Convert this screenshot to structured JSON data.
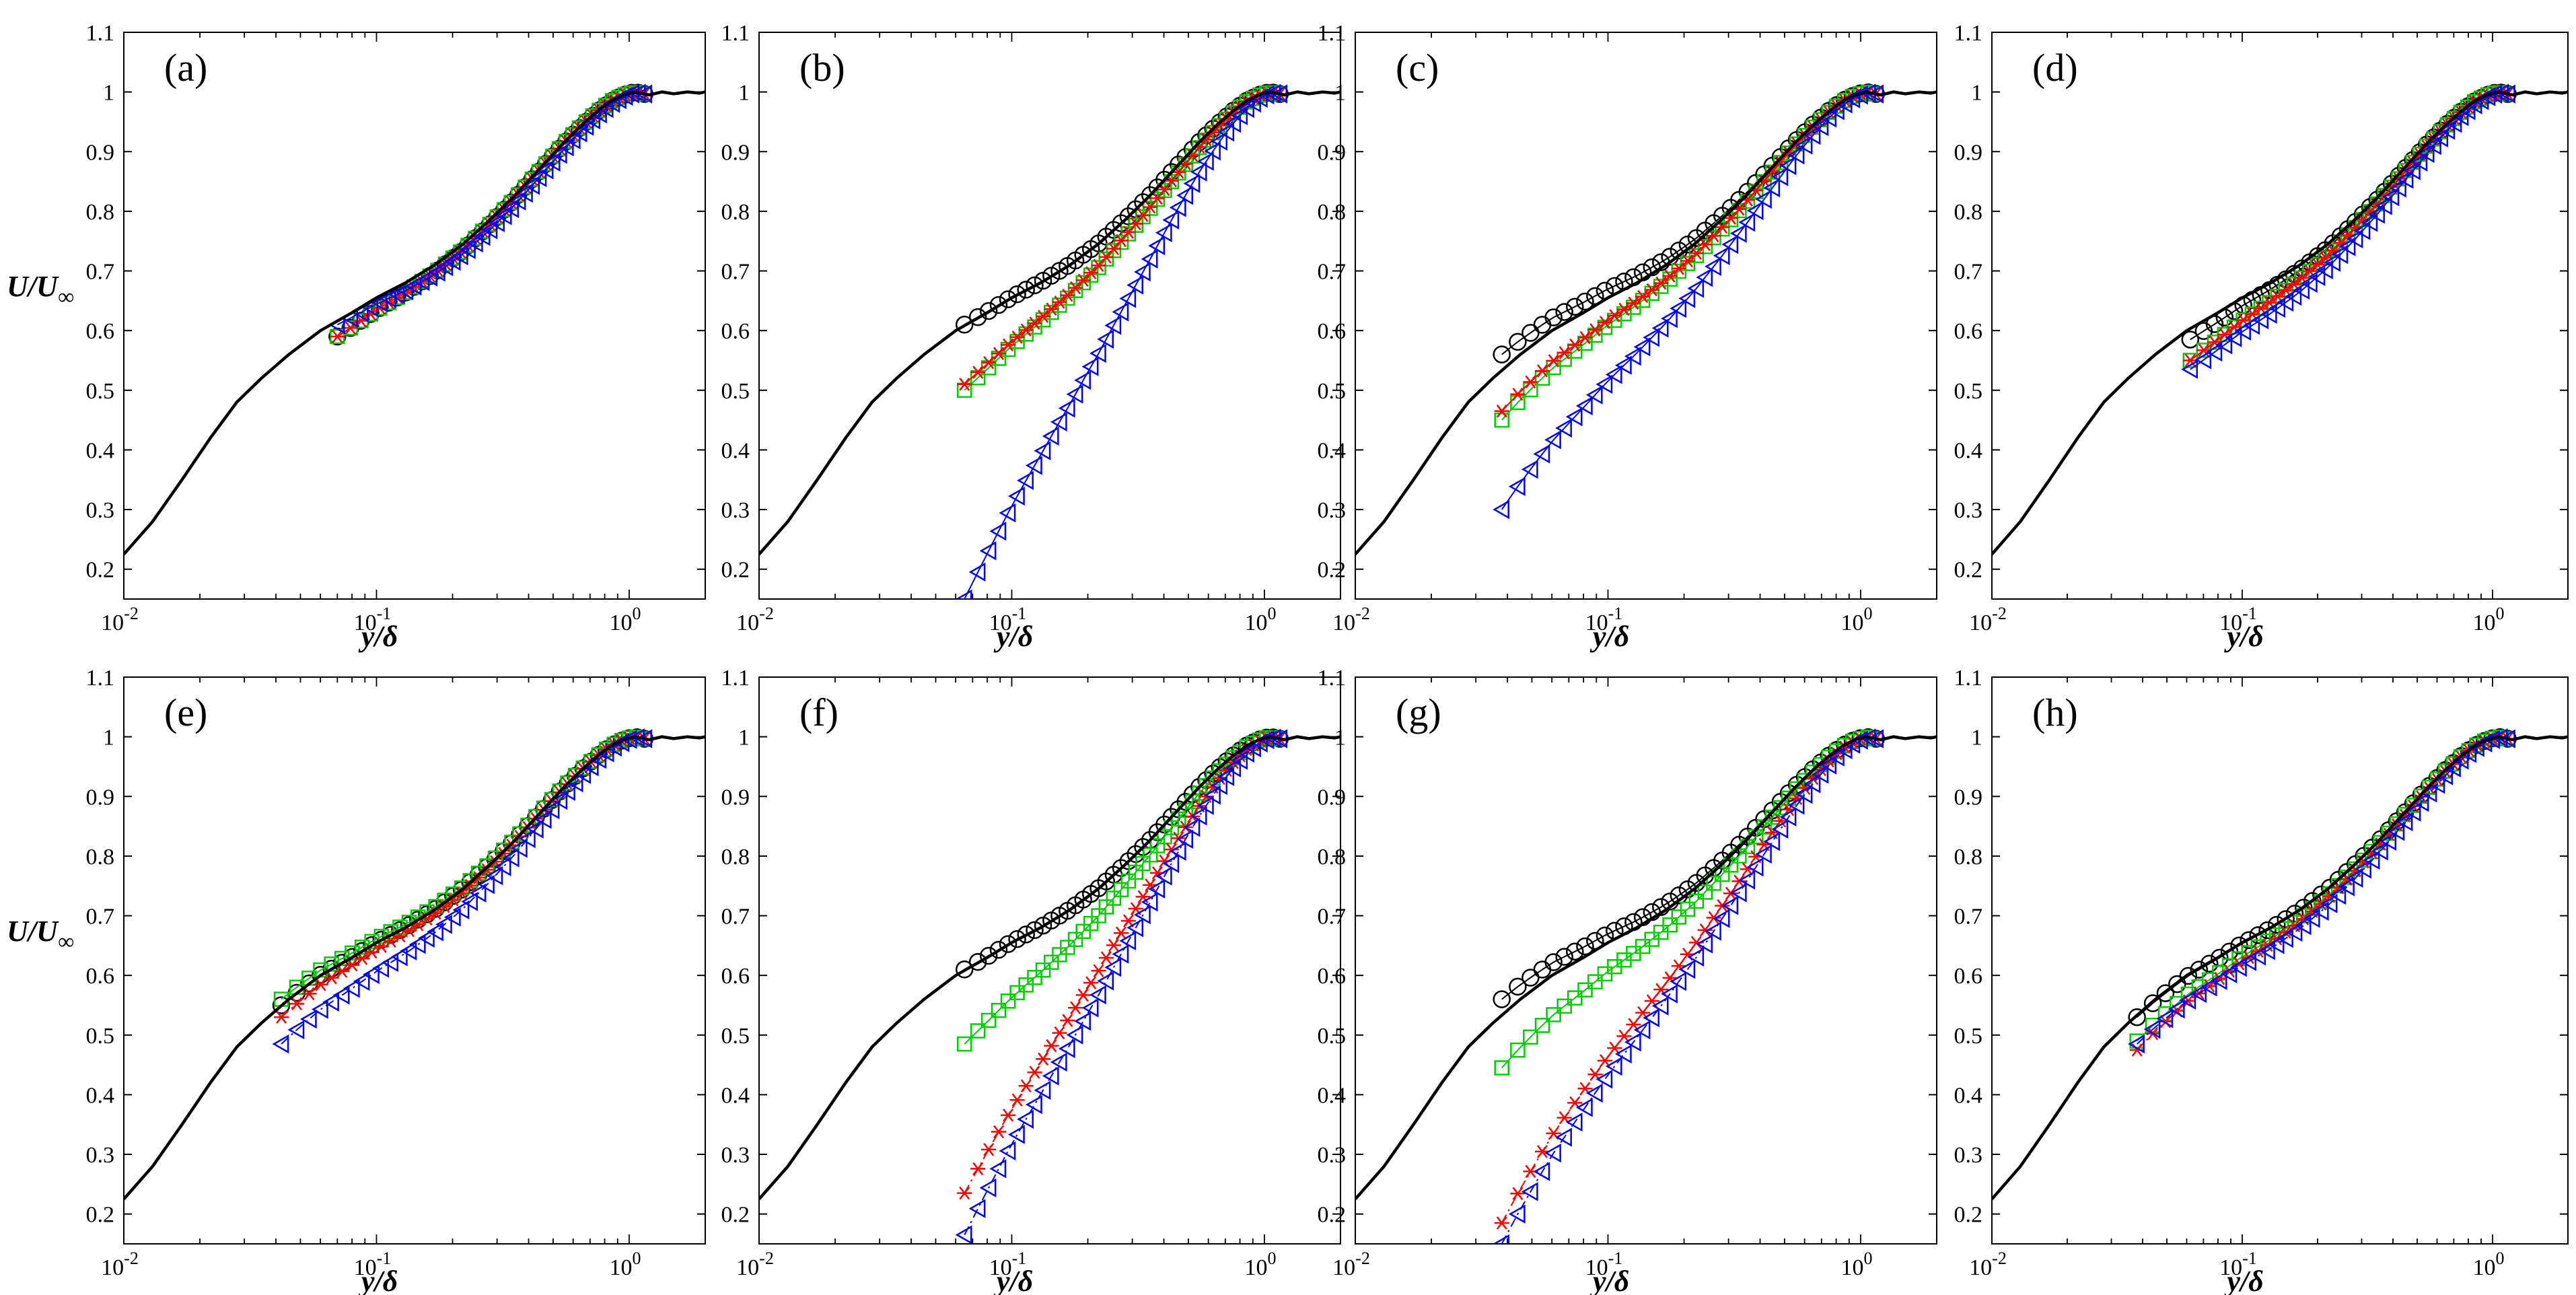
{
  "figure": {
    "x_label": "y/δ",
    "y_label_main": "U/U",
    "y_label_sub": "∞",
    "x_ticks": [
      {
        "base": "10",
        "exp": "-2",
        "value": 0.01
      },
      {
        "base": "10",
        "exp": "-1",
        "value": 0.1
      },
      {
        "base": "10",
        "exp": "0",
        "value": 1
      }
    ],
    "y_ticks": [
      "0.2",
      "0.3",
      "0.4",
      "0.5",
      "0.6",
      "0.7",
      "0.8",
      "0.9",
      "1",
      "1.1"
    ]
  },
  "colors": {
    "black": "#000000",
    "red": "#ff0000",
    "green": "#00cc00",
    "blue": "#0000ff"
  },
  "chart_data": [
    {
      "label": "(a)",
      "type": "line",
      "xscale": "log",
      "xlim": [
        0.01,
        2
      ],
      "ylim": [
        0.15,
        1.1
      ],
      "markers": [
        {
          "name": "circle",
          "color": "black",
          "style": "solid",
          "x0": 0.07,
          "y0": 0.59
        },
        {
          "name": "square",
          "color": "green",
          "style": "solid",
          "x0": 0.07,
          "y0": 0.59
        },
        {
          "name": "star",
          "color": "red",
          "style": "solid",
          "x0": 0.07,
          "y0": 0.59
        },
        {
          "name": "triangle",
          "color": "blue",
          "style": "solid",
          "x0": 0.07,
          "y0": 0.61
        }
      ]
    },
    {
      "label": "(b)",
      "type": "line",
      "xscale": "log",
      "xlim": [
        0.01,
        2
      ],
      "ylim": [
        0.15,
        1.1
      ],
      "markers": [
        {
          "name": "circle",
          "color": "black",
          "style": "solid",
          "x0": 0.065,
          "y0": 0.61
        },
        {
          "name": "square",
          "color": "green",
          "style": "solid",
          "x0": 0.065,
          "y0": 0.5
        },
        {
          "name": "star",
          "color": "red",
          "style": "solid",
          "x0": 0.065,
          "y0": 0.51
        },
        {
          "name": "triangle",
          "color": "blue",
          "style": "solid",
          "x0": 0.065,
          "y0": 0.15
        }
      ]
    },
    {
      "label": "(c)",
      "type": "line",
      "xscale": "log",
      "xlim": [
        0.01,
        2
      ],
      "ylim": [
        0.15,
        1.1
      ],
      "markers": [
        {
          "name": "circle",
          "color": "black",
          "style": "solid",
          "x0": 0.038,
          "y0": 0.56
        },
        {
          "name": "square",
          "color": "green",
          "style": "solid",
          "x0": 0.038,
          "y0": 0.45
        },
        {
          "name": "star",
          "color": "red",
          "style": "solid",
          "x0": 0.038,
          "y0": 0.465
        },
        {
          "name": "triangle",
          "color": "blue",
          "style": "solid",
          "x0": 0.038,
          "y0": 0.3
        }
      ]
    },
    {
      "label": "(d)",
      "type": "line",
      "xscale": "log",
      "xlim": [
        0.01,
        2
      ],
      "ylim": [
        0.15,
        1.1
      ],
      "markers": [
        {
          "name": "circle",
          "color": "black",
          "style": "solid",
          "x0": 0.062,
          "y0": 0.585
        },
        {
          "name": "square",
          "color": "green",
          "style": "solid",
          "x0": 0.062,
          "y0": 0.55
        },
        {
          "name": "star",
          "color": "red",
          "style": "solid",
          "x0": 0.062,
          "y0": 0.55
        },
        {
          "name": "triangle",
          "color": "blue",
          "style": "solid",
          "x0": 0.062,
          "y0": 0.535
        }
      ]
    },
    {
      "label": "(e)",
      "type": "line",
      "xscale": "log",
      "xlim": [
        0.01,
        2
      ],
      "ylim": [
        0.15,
        1.1
      ],
      "markers": [
        {
          "name": "circle",
          "color": "black",
          "style": "solid",
          "x0": 0.042,
          "y0": 0.55
        },
        {
          "name": "square",
          "color": "green",
          "style": "solid",
          "x0": 0.042,
          "y0": 0.56
        },
        {
          "name": "star",
          "color": "red",
          "style": "dashdot",
          "x0": 0.042,
          "y0": 0.53
        },
        {
          "name": "triangle",
          "color": "blue",
          "style": "dashdot",
          "x0": 0.042,
          "y0": 0.485
        }
      ]
    },
    {
      "label": "(f)",
      "type": "line",
      "xscale": "log",
      "xlim": [
        0.01,
        2
      ],
      "ylim": [
        0.15,
        1.1
      ],
      "markers": [
        {
          "name": "circle",
          "color": "black",
          "style": "solid",
          "x0": 0.065,
          "y0": 0.61
        },
        {
          "name": "square",
          "color": "green",
          "style": "solid",
          "x0": 0.065,
          "y0": 0.485
        },
        {
          "name": "star",
          "color": "red",
          "style": "dashdot",
          "x0": 0.065,
          "y0": 0.235
        },
        {
          "name": "triangle",
          "color": "blue",
          "style": "dashdot",
          "x0": 0.065,
          "y0": 0.165
        }
      ]
    },
    {
      "label": "(g)",
      "type": "line",
      "xscale": "log",
      "xlim": [
        0.01,
        2
      ],
      "ylim": [
        0.15,
        1.1
      ],
      "markers": [
        {
          "name": "circle",
          "color": "black",
          "style": "solid",
          "x0": 0.038,
          "y0": 0.56
        },
        {
          "name": "square",
          "color": "green",
          "style": "solid",
          "x0": 0.038,
          "y0": 0.445
        },
        {
          "name": "star",
          "color": "red",
          "style": "dashdot",
          "x0": 0.038,
          "y0": 0.185
        },
        {
          "name": "triangle",
          "color": "blue",
          "style": "dashdot",
          "x0": 0.038,
          "y0": 0.15
        }
      ]
    },
    {
      "label": "(h)",
      "type": "line",
      "xscale": "log",
      "xlim": [
        0.01,
        2
      ],
      "ylim": [
        0.15,
        1.1
      ],
      "markers": [
        {
          "name": "circle",
          "color": "black",
          "style": "solid",
          "x0": 0.038,
          "y0": 0.53
        },
        {
          "name": "square",
          "color": "green",
          "style": "solid",
          "x0": 0.038,
          "y0": 0.49
        },
        {
          "name": "star",
          "color": "red",
          "style": "dashdot",
          "x0": 0.038,
          "y0": 0.475
        },
        {
          "name": "triangle",
          "color": "blue",
          "style": "dashdot",
          "x0": 0.038,
          "y0": 0.485
        }
      ]
    }
  ],
  "reference_profile": {
    "name": "reference-solid-line",
    "x": [
      0.01,
      0.013,
      0.017,
      0.022,
      0.028,
      0.035,
      0.045,
      0.06,
      0.08,
      0.1,
      0.13,
      0.17,
      0.22,
      0.28,
      0.35,
      0.45,
      0.55,
      0.65,
      0.75,
      0.85,
      0.95,
      1.05,
      1.2,
      1.35,
      1.5,
      1.7,
      1.9,
      2.0
    ],
    "y": [
      0.225,
      0.28,
      0.35,
      0.42,
      0.48,
      0.52,
      0.56,
      0.6,
      0.63,
      0.655,
      0.68,
      0.71,
      0.745,
      0.785,
      0.825,
      0.875,
      0.915,
      0.945,
      0.968,
      0.985,
      0.995,
      1.0,
      0.995,
      1.0,
      0.997,
      1.0,
      0.998,
      1.0
    ]
  }
}
